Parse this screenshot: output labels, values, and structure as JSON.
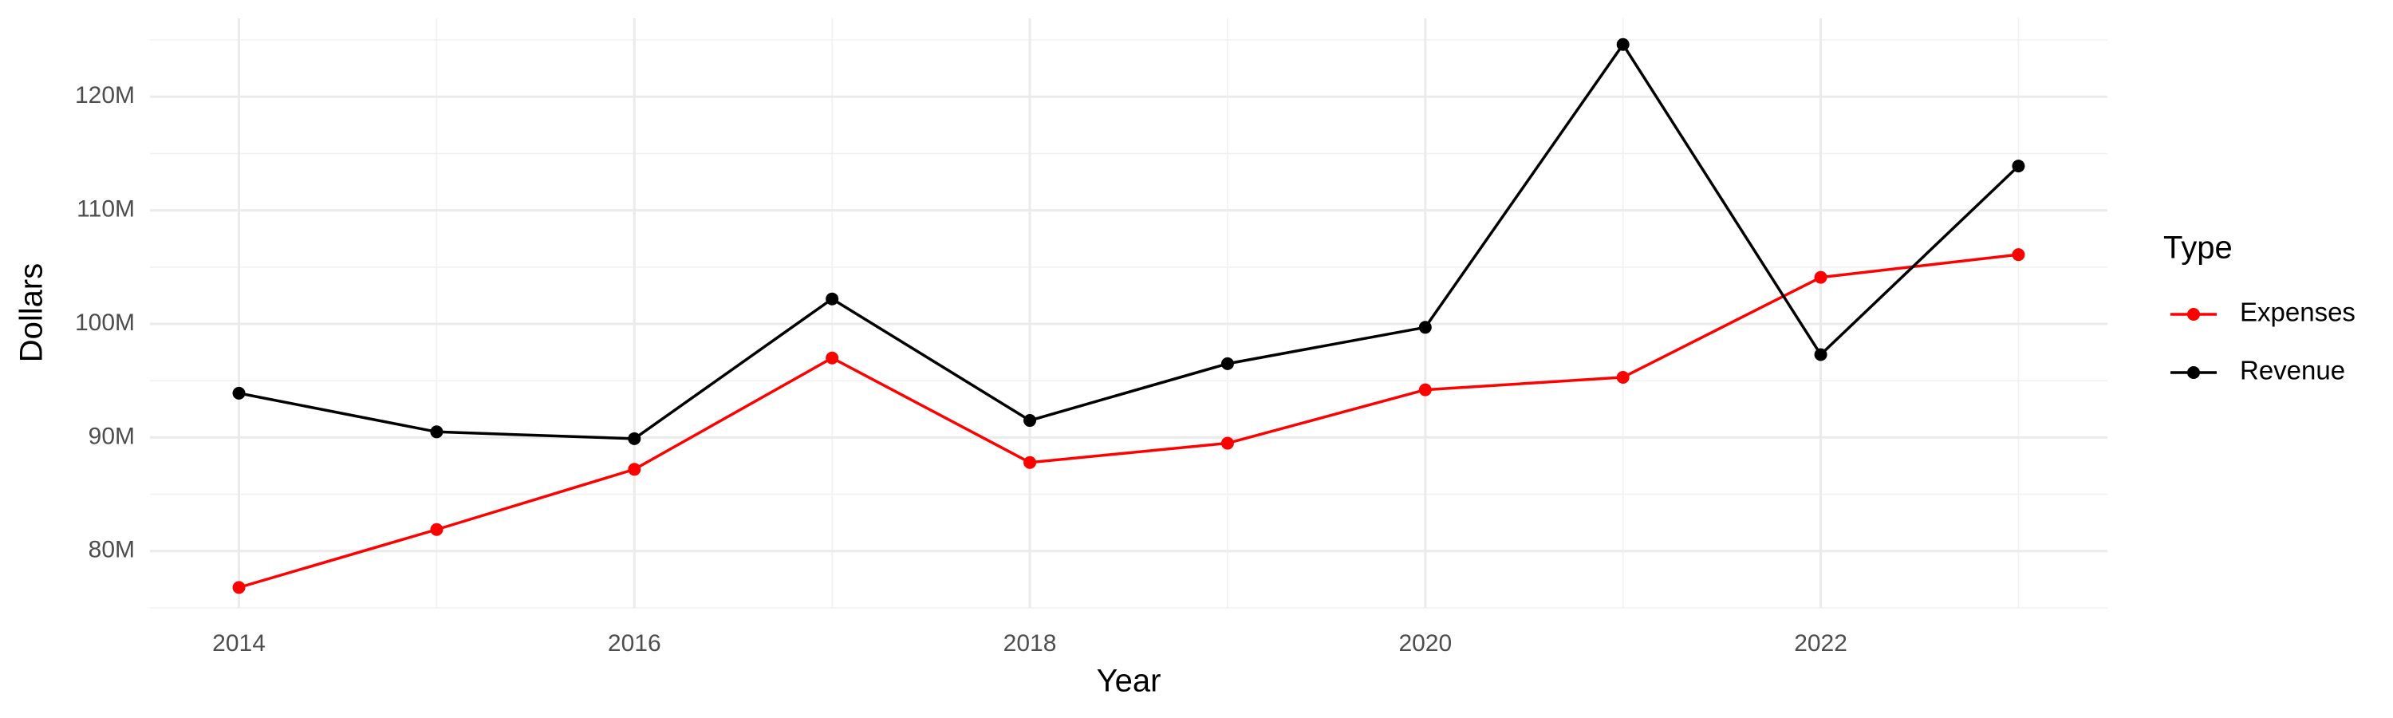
{
  "chart_data": {
    "type": "line",
    "x_label": "Year",
    "y_label": "Dollars",
    "legend_title": "Type",
    "x": [
      2014,
      2015,
      2016,
      2017,
      2018,
      2019,
      2020,
      2021,
      2022,
      2023
    ],
    "series": [
      {
        "name": "Expenses",
        "color": "#ff0000",
        "values": [
          76800000,
          81900000,
          87200000,
          97000000,
          87800000,
          89500000,
          94200000,
          95300000,
          104100000,
          106100000
        ]
      },
      {
        "name": "Revenue",
        "color": "#000000",
        "values": [
          93900000,
          90500000,
          89900000,
          102200000,
          91500000,
          96500000,
          99700000,
          124600000,
          97300000,
          113900000
        ]
      }
    ],
    "xlim": [
      2013.55,
      2023.45
    ],
    "xticks": [
      2014,
      2016,
      2018,
      2020,
      2022
    ],
    "ylim": [
      75000000,
      126900000
    ],
    "yticks": [
      {
        "value": 80000000,
        "label": "80M"
      },
      {
        "value": 90000000,
        "label": "90M"
      },
      {
        "value": 100000000,
        "label": "100M"
      },
      {
        "value": 110000000,
        "label": "110M"
      },
      {
        "value": 120000000,
        "label": "120M"
      }
    ],
    "grid": true,
    "legend": "right"
  }
}
